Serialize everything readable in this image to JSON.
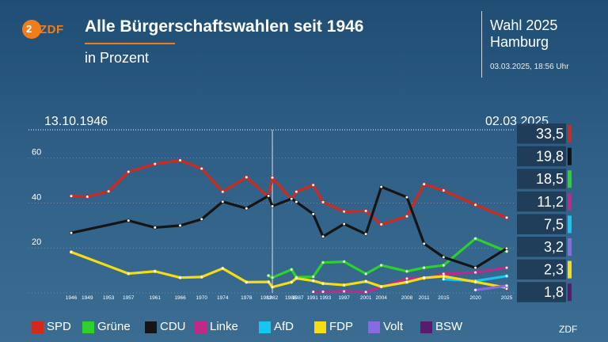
{
  "header": {
    "logo_text": "ZDF",
    "title": "Alle Bürgerschaftswahlen seit 1946",
    "subtitle": "in Prozent",
    "election_line1": "Wahl 2025",
    "election_line2": "Hamburg",
    "timestamp": "03.03.2025, 18:56 Uhr"
  },
  "footer": {
    "credit": "ZDF"
  },
  "chart_data": {
    "type": "line",
    "date_start": "13.10.1946",
    "date_end": "02.03.2025",
    "x": [
      "1946",
      "1949",
      "1953",
      "1957",
      "1961",
      "1966",
      "1970",
      "1974",
      "1978",
      "1982",
      "1982",
      "1986",
      "1987",
      "1991",
      "1993",
      "1997",
      "2001",
      "2004",
      "2008",
      "2011",
      "2015",
      "2020",
      "2025"
    ],
    "y_ticks": [
      20,
      40,
      60
    ],
    "ylim": [
      0,
      68
    ],
    "grid": true,
    "series": [
      {
        "name": "SPD",
        "color": "#d12a1c",
        "values": [
          43.1,
          42.8,
          45.2,
          53.9,
          57.4,
          59.0,
          55.3,
          45.0,
          51.5,
          42.7,
          51.3,
          41.7,
          45.0,
          48.0,
          40.4,
          36.2,
          36.5,
          30.5,
          34.1,
          48.4,
          45.6,
          39.2,
          33.5
        ]
      },
      {
        "name": "Grüne",
        "color": "#2ed12a",
        "values": [
          null,
          null,
          null,
          null,
          null,
          null,
          null,
          null,
          null,
          7.7,
          6.8,
          10.4,
          7.0,
          7.2,
          13.5,
          13.9,
          8.5,
          12.3,
          9.6,
          11.2,
          12.3,
          24.2,
          18.5
        ]
      },
      {
        "name": "CDU",
        "color": "#151515",
        "values": [
          26.7,
          null,
          null,
          32.2,
          29.1,
          30.0,
          32.8,
          40.6,
          37.6,
          43.2,
          38.6,
          41.9,
          40.5,
          35.1,
          25.1,
          30.7,
          26.2,
          47.2,
          42.6,
          21.9,
          15.9,
          11.2,
          19.8
        ]
      },
      {
        "name": "Linke",
        "color": "#c02a86",
        "values": [
          null,
          null,
          null,
          null,
          null,
          null,
          null,
          null,
          null,
          null,
          null,
          null,
          null,
          0.5,
          0.5,
          0.7,
          0.4,
          null,
          6.4,
          6.4,
          8.5,
          9.1,
          11.2
        ]
      },
      {
        "name": "AfD",
        "color": "#14c6f0",
        "values": [
          null,
          null,
          null,
          null,
          null,
          null,
          null,
          null,
          null,
          null,
          null,
          null,
          null,
          null,
          null,
          null,
          null,
          null,
          null,
          null,
          6.1,
          5.3,
          7.5
        ]
      },
      {
        "name": "FDP",
        "color": "#f5dc14",
        "values": [
          18.2,
          null,
          null,
          8.6,
          9.6,
          6.8,
          7.1,
          10.9,
          4.8,
          4.9,
          2.6,
          4.8,
          6.5,
          5.4,
          4.2,
          3.5,
          5.1,
          2.8,
          4.8,
          6.7,
          7.4,
          4.9,
          2.3
        ]
      },
      {
        "name": "Volt",
        "color": "#8a6ae0",
        "values": [
          null,
          null,
          null,
          null,
          null,
          null,
          null,
          null,
          null,
          null,
          null,
          null,
          null,
          null,
          null,
          null,
          null,
          null,
          null,
          null,
          null,
          1.3,
          3.2
        ]
      },
      {
        "name": "BSW",
        "color": "#5a1a6e",
        "values": [
          null,
          null,
          null,
          null,
          null,
          null,
          null,
          null,
          null,
          null,
          null,
          null,
          null,
          null,
          null,
          null,
          null,
          null,
          null,
          null,
          null,
          null,
          1.8
        ]
      }
    ],
    "results": [
      {
        "party": "SPD",
        "value": "33,5",
        "color": "#d12a1c"
      },
      {
        "party": "CDU",
        "value": "19,8",
        "color": "#151515"
      },
      {
        "party": "Grüne",
        "value": "18,5",
        "color": "#2ed12a"
      },
      {
        "party": "Linke",
        "value": "11,2",
        "color": "#c02a86"
      },
      {
        "party": "AfD",
        "value": "7,5",
        "color": "#14c6f0"
      },
      {
        "party": "Volt",
        "value": "3,2",
        "color": "#8a6ae0"
      },
      {
        "party": "FDP",
        "value": "2,3",
        "color": "#f5dc14"
      },
      {
        "party": "BSW",
        "value": "1,8",
        "color": "#5a1a6e"
      }
    ],
    "legend": [
      {
        "name": "SPD",
        "color": "#d12a1c"
      },
      {
        "name": "Grüne",
        "color": "#2ed12a"
      },
      {
        "name": "CDU",
        "color": "#151515"
      },
      {
        "name": "Linke",
        "color": "#c02a86"
      },
      {
        "name": "AfD",
        "color": "#14c6f0"
      },
      {
        "name": "FDP",
        "color": "#f5dc14"
      },
      {
        "name": "Volt",
        "color": "#8a6ae0"
      },
      {
        "name": "BSW",
        "color": "#5a1a6e"
      }
    ]
  }
}
